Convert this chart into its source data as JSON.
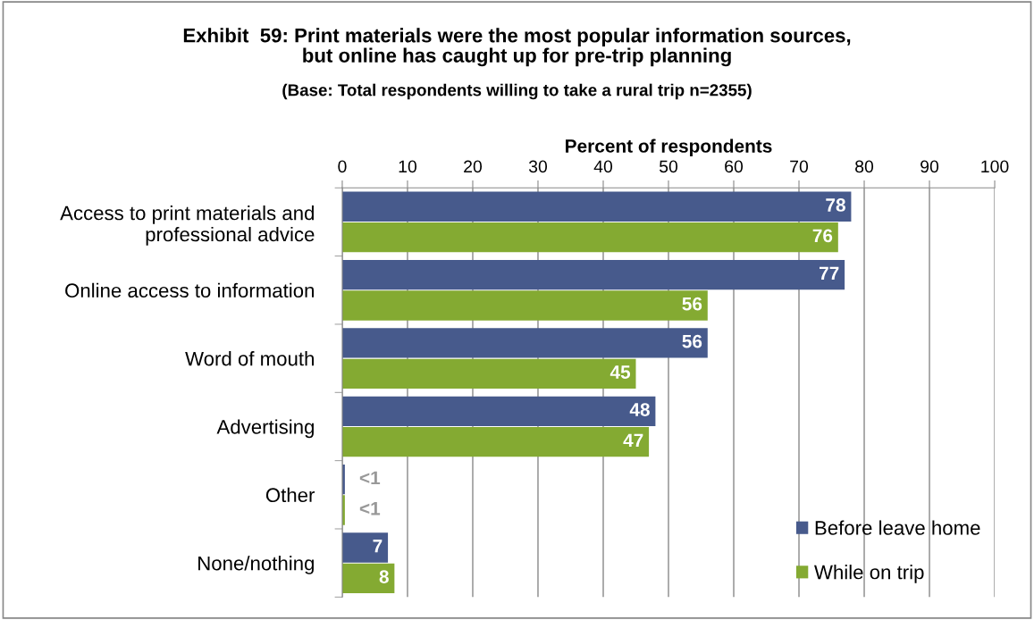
{
  "chart_data": {
    "type": "bar",
    "orientation": "horizontal",
    "title": "Exhibit  59: Print materials were the most popular information sources,\nbut online has caught up for pre-trip planning",
    "subtitle": "(Base: Total respondents willing to take a rural trip n=2355)",
    "xlabel": "Percent of respondents",
    "categories": [
      "Access to print materials and\nprofessional advice",
      "Online access to information",
      "Word of mouth",
      "Advertising",
      "Other",
      "None/nothing"
    ],
    "series": [
      {
        "name": "Before leave home",
        "color": "#475a8c",
        "values": [
          78,
          77,
          56,
          48,
          0.4,
          7
        ],
        "value_labels": [
          "78",
          "77",
          "56",
          "48",
          "<1",
          "7"
        ]
      },
      {
        "name": "While on trip",
        "color": "#84aa32",
        "values": [
          76,
          56,
          45,
          47,
          0.4,
          8
        ],
        "value_labels": [
          "76",
          "56",
          "45",
          "47",
          "<1",
          "8"
        ]
      }
    ],
    "xlim": [
      0,
      100
    ],
    "xticks": [
      0,
      10,
      20,
      30,
      40,
      50,
      60,
      70,
      80,
      90,
      100
    ],
    "grid": "x",
    "legend": "bottom right"
  }
}
